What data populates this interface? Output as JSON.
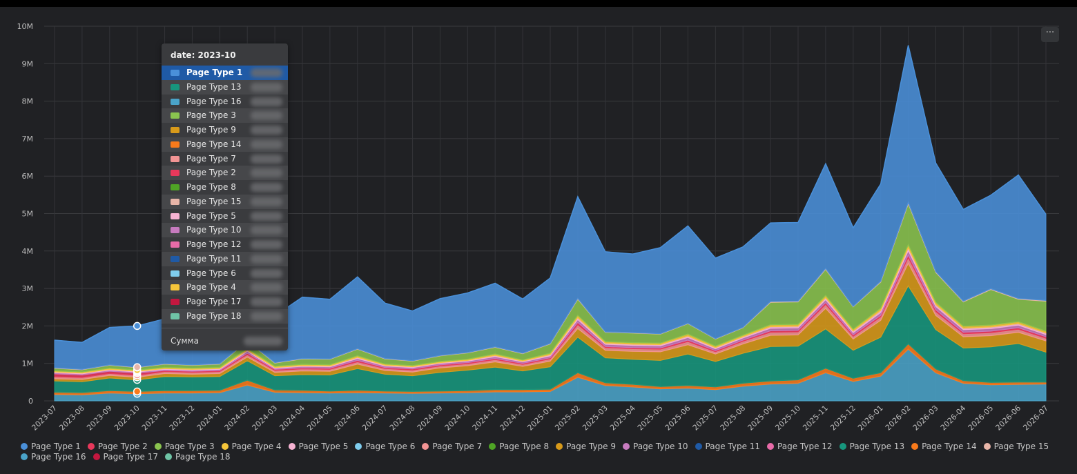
{
  "chart_data": {
    "type": "area",
    "stacked": true,
    "x": [
      "2023-07",
      "2023-08",
      "2023-09",
      "2023-10",
      "2023-11",
      "2023-12",
      "2024-01",
      "2024-02",
      "2024-03",
      "2024-04",
      "2024-05",
      "2024-06",
      "2024-07",
      "2024-08",
      "2024-09",
      "2024-10",
      "2024-11",
      "2024-12",
      "2025-01",
      "2025-02",
      "2025-03",
      "2025-04",
      "2025-05",
      "2025-06",
      "2025-07",
      "2025-08",
      "2025-09",
      "2025-10",
      "2025-11",
      "2025-12",
      "2026-01",
      "2026-02",
      "2026-03",
      "2026-04",
      "2026-05",
      "2026-06",
      "2026-07"
    ],
    "y_ticks": [
      "0",
      "1M",
      "2M",
      "3M",
      "4M",
      "5M",
      "6M",
      "7M",
      "8M",
      "9M",
      "10M"
    ],
    "ylim": [
      0,
      10000000
    ],
    "grid": true,
    "legend_position": "bottom",
    "series": [
      {
        "name": "Page Type 16",
        "color": "#4aa3c8",
        "values": [
          0.17,
          0.16,
          0.21,
          0.19,
          0.21,
          0.21,
          0.22,
          0.42,
          0.23,
          0.22,
          0.21,
          0.22,
          0.21,
          0.2,
          0.21,
          0.22,
          0.24,
          0.24,
          0.25,
          0.63,
          0.41,
          0.37,
          0.32,
          0.34,
          0.3,
          0.39,
          0.45,
          0.47,
          0.75,
          0.52,
          0.66,
          1.38,
          0.75,
          0.47,
          0.43,
          0.44,
          0.45
        ]
      },
      {
        "name": "Page Type 14",
        "color": "#f97a1b",
        "values": [
          0.06,
          0.06,
          0.06,
          0.06,
          0.06,
          0.06,
          0.06,
          0.13,
          0.06,
          0.06,
          0.05,
          0.06,
          0.05,
          0.05,
          0.05,
          0.05,
          0.06,
          0.06,
          0.06,
          0.12,
          0.07,
          0.07,
          0.06,
          0.07,
          0.07,
          0.08,
          0.08,
          0.09,
          0.12,
          0.08,
          0.09,
          0.14,
          0.1,
          0.07,
          0.06,
          0.06,
          0.05
        ]
      },
      {
        "name": "Page Type 13",
        "color": "#17967d",
        "values": [
          0.3,
          0.29,
          0.34,
          0.31,
          0.38,
          0.37,
          0.37,
          0.52,
          0.38,
          0.42,
          0.43,
          0.58,
          0.45,
          0.42,
          0.5,
          0.55,
          0.6,
          0.5,
          0.6,
          0.95,
          0.67,
          0.67,
          0.7,
          0.84,
          0.68,
          0.8,
          0.92,
          0.9,
          1.05,
          0.75,
          0.95,
          1.55,
          1.05,
          0.87,
          0.95,
          1.03,
          0.8
        ]
      },
      {
        "name": "Page Type 9",
        "color": "#d89a1a",
        "values": [
          0.06,
          0.06,
          0.07,
          0.07,
          0.08,
          0.07,
          0.08,
          0.1,
          0.09,
          0.1,
          0.1,
          0.12,
          0.1,
          0.1,
          0.12,
          0.12,
          0.14,
          0.12,
          0.15,
          0.23,
          0.2,
          0.21,
          0.23,
          0.25,
          0.2,
          0.25,
          0.3,
          0.3,
          0.55,
          0.3,
          0.45,
          0.6,
          0.38,
          0.3,
          0.3,
          0.3,
          0.3
        ]
      },
      {
        "name": "Page Type 7",
        "color": "#f29494",
        "values": [
          0.05,
          0.05,
          0.05,
          0.05,
          0.05,
          0.05,
          0.05,
          0.06,
          0.05,
          0.05,
          0.05,
          0.06,
          0.05,
          0.05,
          0.05,
          0.05,
          0.06,
          0.05,
          0.06,
          0.1,
          0.07,
          0.07,
          0.07,
          0.08,
          0.06,
          0.07,
          0.08,
          0.08,
          0.1,
          0.07,
          0.09,
          0.15,
          0.1,
          0.08,
          0.08,
          0.08,
          0.07
        ]
      },
      {
        "name": "Page Type 2",
        "color": "#e8385b",
        "values": [
          0.08,
          0.07,
          0.06,
          0.06,
          0.03,
          0.03,
          0.03,
          0.04,
          0.03,
          0.03,
          0.03,
          0.04,
          0.03,
          0.03,
          0.03,
          0.03,
          0.03,
          0.03,
          0.03,
          0.06,
          0.03,
          0.03,
          0.03,
          0.04,
          0.03,
          0.03,
          0.04,
          0.04,
          0.05,
          0.04,
          0.04,
          0.07,
          0.05,
          0.04,
          0.04,
          0.04,
          0.04
        ]
      },
      {
        "name": "Page Type 10",
        "color": "#c77bbf",
        "values": [
          0.03,
          0.03,
          0.03,
          0.03,
          0.03,
          0.03,
          0.03,
          0.05,
          0.03,
          0.04,
          0.04,
          0.05,
          0.04,
          0.04,
          0.04,
          0.04,
          0.05,
          0.04,
          0.05,
          0.08,
          0.06,
          0.06,
          0.06,
          0.07,
          0.05,
          0.06,
          0.07,
          0.07,
          0.08,
          0.06,
          0.08,
          0.12,
          0.09,
          0.07,
          0.07,
          0.07,
          0.06
        ]
      },
      {
        "name": "Page Type 5",
        "color": "#f7b3d3",
        "values": [
          0.02,
          0.02,
          0.02,
          0.02,
          0.02,
          0.02,
          0.02,
          0.03,
          0.02,
          0.02,
          0.02,
          0.03,
          0.02,
          0.02,
          0.02,
          0.02,
          0.03,
          0.02,
          0.03,
          0.05,
          0.03,
          0.03,
          0.03,
          0.04,
          0.03,
          0.03,
          0.04,
          0.04,
          0.05,
          0.04,
          0.05,
          0.07,
          0.05,
          0.04,
          0.04,
          0.04,
          0.04
        ]
      },
      {
        "name": "Page Type 4",
        "color": "#f5c53a",
        "values": [
          0.03,
          0.03,
          0.03,
          0.03,
          0.03,
          0.03,
          0.03,
          0.04,
          0.03,
          0.03,
          0.03,
          0.04,
          0.03,
          0.03,
          0.03,
          0.03,
          0.04,
          0.03,
          0.04,
          0.06,
          0.04,
          0.04,
          0.04,
          0.05,
          0.04,
          0.04,
          0.05,
          0.05,
          0.06,
          0.05,
          0.06,
          0.08,
          0.06,
          0.05,
          0.05,
          0.05,
          0.05
        ]
      },
      {
        "name": "Page Type 3",
        "color": "#8ac44f",
        "values": [
          0.07,
          0.06,
          0.08,
          0.07,
          0.09,
          0.08,
          0.09,
          0.2,
          0.09,
          0.15,
          0.15,
          0.18,
          0.14,
          0.12,
          0.15,
          0.17,
          0.18,
          0.17,
          0.25,
          0.43,
          0.25,
          0.26,
          0.24,
          0.28,
          0.19,
          0.2,
          0.6,
          0.6,
          0.7,
          0.6,
          0.7,
          1.1,
          0.8,
          0.65,
          0.95,
          0.6,
          0.8
        ]
      },
      {
        "name": "Page Type 15",
        "color": "#e8b5a8",
        "values": [
          0.01,
          0.01,
          0.01,
          0.01,
          0.01,
          0.01,
          0.01,
          0.01,
          0.01,
          0.01,
          0.01,
          0.01,
          0.01,
          0.01,
          0.01,
          0.01,
          0.01,
          0.01,
          0.01,
          0.02,
          0.01,
          0.01,
          0.01,
          0.01,
          0.01,
          0.01,
          0.02,
          0.02,
          0.02,
          0.01,
          0.02,
          0.03,
          0.02,
          0.02,
          0.02,
          0.02,
          0.02
        ]
      },
      {
        "name": "Page Type 1",
        "color": "#4a90d9",
        "values": [
          0.74,
          0.72,
          1.0,
          1.1,
          1.2,
          1.15,
          1.24,
          1.3,
          1.25,
          1.64,
          1.59,
          1.92,
          1.48,
          1.33,
          1.52,
          1.59,
          1.7,
          1.45,
          1.75,
          2.72,
          2.14,
          2.1,
          2.3,
          2.6,
          2.15,
          2.15,
          2.1,
          2.1,
          2.8,
          2.1,
          2.6,
          4.2,
          2.9,
          2.45,
          2.5,
          3.3,
          2.3
        ]
      }
    ],
    "tooltip": {
      "title": "date: 2023-10",
      "items": [
        {
          "name": "Page Type 1",
          "color": "#4a90d9",
          "active": true
        },
        {
          "name": "Page Type 13",
          "color": "#17967d"
        },
        {
          "name": "Page Type 16",
          "color": "#4aa3c8"
        },
        {
          "name": "Page Type 3",
          "color": "#8ac44f"
        },
        {
          "name": "Page Type 9",
          "color": "#d89a1a"
        },
        {
          "name": "Page Type 14",
          "color": "#f97a1b"
        },
        {
          "name": "Page Type 7",
          "color": "#f29494"
        },
        {
          "name": "Page Type 2",
          "color": "#e8385b"
        },
        {
          "name": "Page Type 8",
          "color": "#4fa425"
        },
        {
          "name": "Page Type 15",
          "color": "#e8b5a8"
        },
        {
          "name": "Page Type 5",
          "color": "#f7b3d3"
        },
        {
          "name": "Page Type 10",
          "color": "#c77bbf"
        },
        {
          "name": "Page Type 12",
          "color": "#e86ba8"
        },
        {
          "name": "Page Type 11",
          "color": "#1f5aa6"
        },
        {
          "name": "Page Type 6",
          "color": "#7fcdee"
        },
        {
          "name": "Page Type 4",
          "color": "#f5c53a"
        },
        {
          "name": "Page Type 17",
          "color": "#c4173f"
        },
        {
          "name": "Page Type 18",
          "color": "#6fc4a6"
        }
      ],
      "sum_label": "Сумма"
    },
    "legend": [
      {
        "name": "Page Type 1",
        "color": "#4a90d9"
      },
      {
        "name": "Page Type 2",
        "color": "#e8385b"
      },
      {
        "name": "Page Type 3",
        "color": "#8ac44f"
      },
      {
        "name": "Page Type 4",
        "color": "#f5c53a"
      },
      {
        "name": "Page Type 5",
        "color": "#f7b3d3"
      },
      {
        "name": "Page Type 6",
        "color": "#7fcdee"
      },
      {
        "name": "Page Type 7",
        "color": "#f29494"
      },
      {
        "name": "Page Type 8",
        "color": "#4fa425"
      },
      {
        "name": "Page Type 9",
        "color": "#d89a1a"
      },
      {
        "name": "Page Type 10",
        "color": "#c77bbf"
      },
      {
        "name": "Page Type 11",
        "color": "#1f5aa6"
      },
      {
        "name": "Page Type 12",
        "color": "#e86ba8"
      },
      {
        "name": "Page Type 13",
        "color": "#17967d"
      },
      {
        "name": "Page Type 14",
        "color": "#f97a1b"
      },
      {
        "name": "Page Type 15",
        "color": "#e8b5a8"
      },
      {
        "name": "Page Type 16",
        "color": "#4aa3c8"
      },
      {
        "name": "Page Type 17",
        "color": "#c4173f"
      },
      {
        "name": "Page Type 18",
        "color": "#6fc4a6"
      }
    ]
  },
  "menu": {
    "more_label": "···"
  }
}
